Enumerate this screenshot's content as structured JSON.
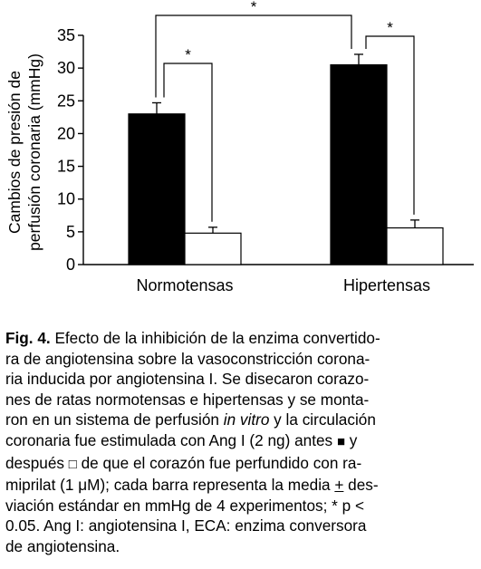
{
  "chart_data": {
    "type": "bar",
    "ylabel_line1": "Cambios de presión de",
    "ylabel_line2": "perfusión coronaria (mmHg)",
    "ylim": [
      0,
      35
    ],
    "yticks": [
      "0",
      "5",
      "10",
      "15",
      "20",
      "25",
      "30",
      "35"
    ],
    "categories": [
      "Normotensas",
      "Hipertensas"
    ],
    "series": [
      {
        "color": "#000000",
        "values": [
          23,
          30.5
        ],
        "errors": [
          1.7,
          1.6
        ]
      },
      {
        "color": "#ffffff",
        "values": [
          4.8,
          5.6
        ],
        "errors": [
          0.9,
          1.2
        ]
      }
    ],
    "annotations": [
      "*",
      "*",
      "*"
    ]
  },
  "caption": {
    "label": "Fig. 4.",
    "line1": " Efecto de la inhibición de la enzima convertido-",
    "line2": "ra de angiotensina sobre la vasoconstricción corona-",
    "line3": "ria inducida por angiotensina I. Se disecaron corazo-",
    "line4": "nes de ratas normotensas e hipertensas y se monta-",
    "line5a": "ron en un sistema de perfusión ",
    "line5b": "in vitro",
    "line5c": " y la circulación",
    "line6a": "coronaria fue estimulada con Ang I (2 ng) antes ",
    "sq_filled": "■",
    "line6b": " y",
    "line7a": "después ",
    "sq_open": "□",
    "line7b": " de que el corazón fue perfundido con ra-",
    "line8": "miprilat (1 μM); cada barra representa la media ",
    "pm": "+",
    "line8b": " des-",
    "line9": "viación estándar en mmHg de 4 experimentos; * p <",
    "line10": "0.05. Ang I: angiotensina I, ECA: enzima conversora",
    "line11": "de angiotensina."
  }
}
